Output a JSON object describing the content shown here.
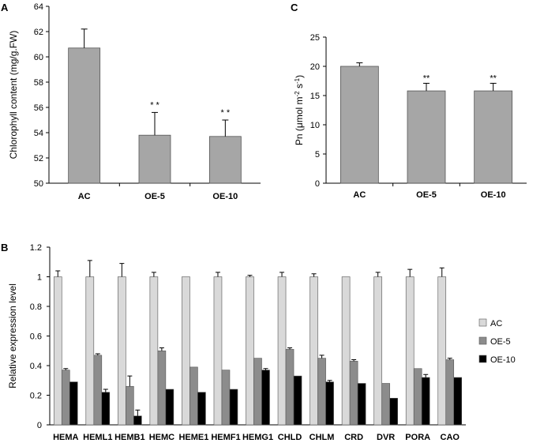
{
  "colors": {
    "bar_grey": "#a6a6a6",
    "ac_light": "#d9d9d9",
    "oe5_mid": "#8c8c8c",
    "oe10_black": "#000000",
    "axis": "#000000"
  },
  "chart_data": [
    {
      "panel": "A",
      "type": "bar",
      "ylabel": "Chlorophyll content (mg/g.FW)",
      "ylim": [
        50,
        64
      ],
      "yticks": [
        "50",
        "52",
        "54",
        "56",
        "58",
        "60",
        "62",
        "64"
      ],
      "categories": [
        "AC",
        "OE-5",
        "OE-10"
      ],
      "values": [
        60.7,
        53.8,
        53.7
      ],
      "errors": [
        1.5,
        1.8,
        1.3
      ],
      "annotations": [
        "",
        "* *",
        "* *"
      ]
    },
    {
      "panel": "C",
      "type": "bar",
      "ylabel_main": "Pn (μmol m",
      "ylabel_sup1": "-2",
      "ylabel_mid": " s",
      "ylabel_sup2": "-1",
      "ylabel_end": ")",
      "ylim": [
        0,
        25
      ],
      "yticks": [
        "0",
        "5",
        "10",
        "15",
        "20",
        "25"
      ],
      "categories": [
        "AC",
        "OE-5",
        "OE-10"
      ],
      "values": [
        20.0,
        15.8,
        15.8
      ],
      "errors": [
        0.6,
        1.3,
        1.3
      ],
      "annotations": [
        "",
        "**",
        "**"
      ]
    },
    {
      "panel": "B",
      "type": "bar",
      "ylabel": "Relative expression level",
      "ylim": [
        0,
        1.2
      ],
      "yticks": [
        "0",
        "0.2",
        "0.4",
        "0.6",
        "0.8",
        "1",
        "1.2"
      ],
      "categories": [
        "HEMA",
        "HEML1",
        "HEMB1",
        "HEMC",
        "HEME1",
        "HEMF1",
        "HEMG1",
        "CHLD",
        "CHLM",
        "CRD",
        "DVR",
        "PORA",
        "CAO"
      ],
      "series": [
        {
          "name": "AC",
          "values": [
            1.0,
            1.0,
            1.0,
            1.0,
            1.0,
            1.0,
            1.0,
            1.0,
            1.0,
            1.0,
            1.0,
            1.0,
            1.0
          ],
          "errors": [
            0.04,
            0.11,
            0.09,
            0.03,
            0.0,
            0.03,
            0.01,
            0.03,
            0.02,
            0.0,
            0.03,
            0.05,
            0.06
          ]
        },
        {
          "name": "OE-5",
          "values": [
            0.37,
            0.47,
            0.26,
            0.5,
            0.39,
            0.37,
            0.45,
            0.51,
            0.45,
            0.43,
            0.28,
            0.38,
            0.44
          ],
          "errors": [
            0.01,
            0.01,
            0.07,
            0.02,
            0.0,
            0.0,
            0.0,
            0.01,
            0.02,
            0.01,
            0.0,
            0.0,
            0.01
          ]
        },
        {
          "name": "OE-10",
          "values": [
            0.29,
            0.22,
            0.06,
            0.24,
            0.22,
            0.24,
            0.37,
            0.33,
            0.29,
            0.28,
            0.18,
            0.32,
            0.32
          ],
          "errors": [
            0.0,
            0.02,
            0.04,
            0.0,
            0.0,
            0.0,
            0.01,
            0.0,
            0.01,
            0.0,
            0.0,
            0.02,
            0.0
          ]
        }
      ]
    }
  ]
}
